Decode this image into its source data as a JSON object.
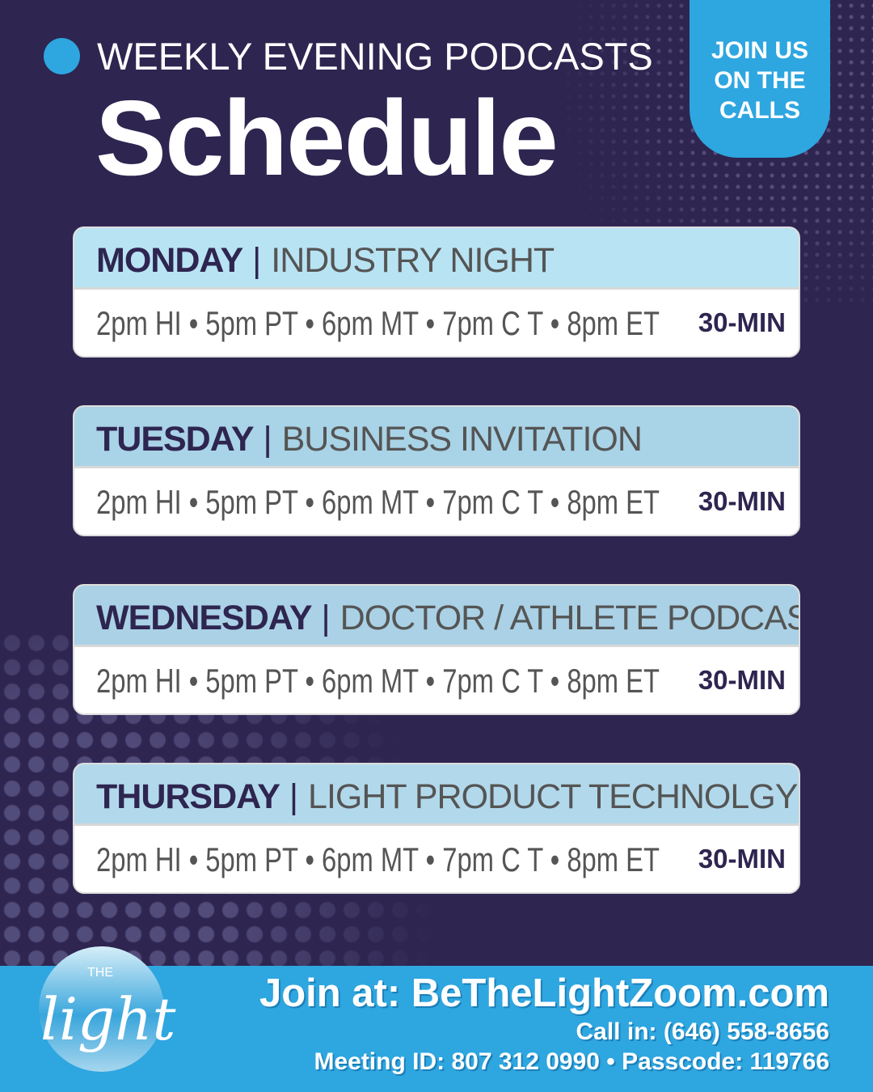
{
  "header": {
    "kicker": "WEEKLY EVENING PODCASTS",
    "title": "Schedule",
    "badge": [
      "JOIN US",
      "ON THE",
      "CALLS"
    ]
  },
  "sessions": [
    {
      "day": "MONDAY",
      "topic": "INDUSTRY NIGHT",
      "times": "2pm HI • 5pm PT • 6pm MT • 7pm C T • 8pm ET",
      "duration": "30-MIN",
      "header_color": "#b8e3f3"
    },
    {
      "day": "TUESDAY",
      "topic": "BUSINESS INVITATION",
      "times": "2pm HI • 5pm PT • 6pm MT • 7pm C T • 8pm ET",
      "duration": "30-MIN",
      "header_color": "#a9d3e6"
    },
    {
      "day": "WEDNESDAY",
      "topic": "DOCTOR / ATHLETE PODCAST",
      "times": "2pm HI • 5pm PT • 6pm MT • 7pm C T • 8pm ET",
      "duration": "30-MIN",
      "header_color": "#aad1e5"
    },
    {
      "day": "THURSDAY",
      "topic": "LIGHT PRODUCT TECHNOLGY",
      "times": "2pm HI • 5pm PT • 6pm MT • 7pm C T • 8pm ET",
      "duration": "30-MIN",
      "header_color": "#b2d9eb"
    }
  ],
  "separator": "|",
  "logo": {
    "small": "THE",
    "script": "light"
  },
  "footer": {
    "join": "Join at: BeTheLightZoom.com",
    "call": "Call in: (646) 558-8656",
    "meeting": "Meeting ID: 807 312 0990 • Passcode: 119766"
  },
  "colors": {
    "background": "#2e2550",
    "accent": "#2ea6e0"
  }
}
